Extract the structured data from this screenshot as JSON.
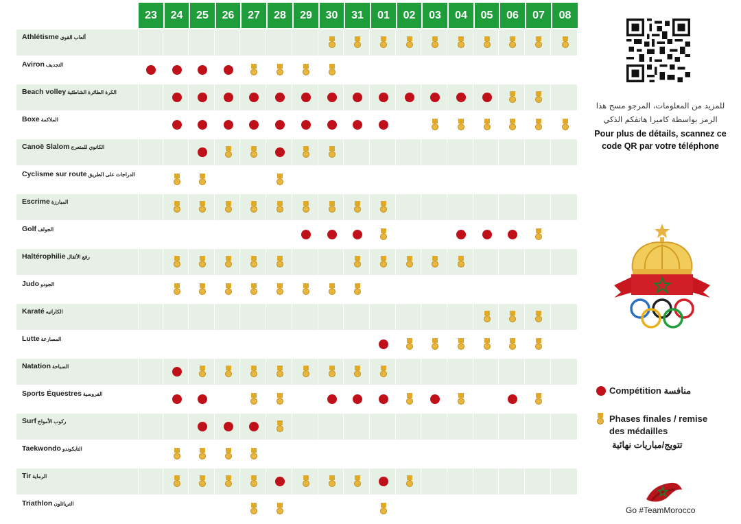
{
  "dates": [
    "23",
    "24",
    "25",
    "26",
    "27",
    "28",
    "29",
    "30",
    "31",
    "01",
    "02",
    "03",
    "04",
    "05",
    "06",
    "07",
    "08"
  ],
  "sports": [
    {
      "fr": "Athlétisme",
      "ar": "ألعاب القوى",
      "events": [
        [
          7,
          "M"
        ],
        [
          8,
          "M"
        ],
        [
          9,
          "M"
        ],
        [
          10,
          "M"
        ],
        [
          11,
          "M"
        ],
        [
          12,
          "M"
        ],
        [
          13,
          "M"
        ],
        [
          14,
          "M"
        ],
        [
          15,
          "M"
        ],
        [
          16,
          "M"
        ]
      ]
    },
    {
      "fr": "Aviron",
      "ar": "التجديف",
      "events": [
        [
          0,
          "C"
        ],
        [
          1,
          "C"
        ],
        [
          2,
          "C"
        ],
        [
          3,
          "C"
        ],
        [
          4,
          "M"
        ],
        [
          5,
          "M"
        ],
        [
          6,
          "M"
        ],
        [
          7,
          "M"
        ]
      ]
    },
    {
      "fr": "Beach volley",
      "ar": "الكرة الطائرة الشاطئية",
      "events": [
        [
          1,
          "C"
        ],
        [
          2,
          "C"
        ],
        [
          3,
          "C"
        ],
        [
          4,
          "C"
        ],
        [
          5,
          "C"
        ],
        [
          6,
          "C"
        ],
        [
          7,
          "C"
        ],
        [
          8,
          "C"
        ],
        [
          9,
          "C"
        ],
        [
          10,
          "C"
        ],
        [
          11,
          "C"
        ],
        [
          12,
          "C"
        ],
        [
          13,
          "C"
        ],
        [
          14,
          "M"
        ],
        [
          15,
          "M"
        ]
      ]
    },
    {
      "fr": "Boxe",
      "ar": "الملاكمة",
      "events": [
        [
          1,
          "C"
        ],
        [
          2,
          "C"
        ],
        [
          3,
          "C"
        ],
        [
          4,
          "C"
        ],
        [
          5,
          "C"
        ],
        [
          6,
          "C"
        ],
        [
          7,
          "C"
        ],
        [
          8,
          "C"
        ],
        [
          9,
          "C"
        ],
        [
          11,
          "M"
        ],
        [
          12,
          "M"
        ],
        [
          13,
          "M"
        ],
        [
          14,
          "M"
        ],
        [
          15,
          "M"
        ],
        [
          16,
          "M"
        ]
      ]
    },
    {
      "fr": "Canoë Slalom",
      "ar": "الكانوي للمتعرج",
      "events": [
        [
          2,
          "C"
        ],
        [
          3,
          "M"
        ],
        [
          4,
          "M"
        ],
        [
          5,
          "C"
        ],
        [
          6,
          "M"
        ],
        [
          7,
          "M"
        ]
      ]
    },
    {
      "fr": "Cyclisme sur route",
      "ar": "الدراجات على الطريق",
      "events": [
        [
          1,
          "M"
        ],
        [
          2,
          "M"
        ],
        [
          5,
          "M"
        ]
      ]
    },
    {
      "fr": "Escrime",
      "ar": "المبارزة",
      "events": [
        [
          1,
          "M"
        ],
        [
          2,
          "M"
        ],
        [
          3,
          "M"
        ],
        [
          4,
          "M"
        ],
        [
          5,
          "M"
        ],
        [
          6,
          "M"
        ],
        [
          7,
          "M"
        ],
        [
          8,
          "M"
        ],
        [
          9,
          "M"
        ]
      ]
    },
    {
      "fr": "Golf",
      "ar": "الجولف",
      "events": [
        [
          6,
          "C"
        ],
        [
          7,
          "C"
        ],
        [
          8,
          "C"
        ],
        [
          9,
          "M"
        ],
        [
          12,
          "C"
        ],
        [
          13,
          "C"
        ],
        [
          14,
          "C"
        ],
        [
          15,
          "M"
        ]
      ]
    },
    {
      "fr": "Haltérophilie",
      "ar": "رفع الأثقال",
      "events": [
        [
          1,
          "M"
        ],
        [
          2,
          "M"
        ],
        [
          3,
          "M"
        ],
        [
          4,
          "M"
        ],
        [
          5,
          "M"
        ],
        [
          8,
          "M"
        ],
        [
          9,
          "M"
        ],
        [
          10,
          "M"
        ],
        [
          11,
          "M"
        ],
        [
          12,
          "M"
        ]
      ]
    },
    {
      "fr": "Judo",
      "ar": "الجودو",
      "events": [
        [
          1,
          "M"
        ],
        [
          2,
          "M"
        ],
        [
          3,
          "M"
        ],
        [
          4,
          "M"
        ],
        [
          5,
          "M"
        ],
        [
          6,
          "M"
        ],
        [
          7,
          "M"
        ],
        [
          8,
          "M"
        ]
      ]
    },
    {
      "fr": "Karaté",
      "ar": "الكاراتيه",
      "events": [
        [
          13,
          "M"
        ],
        [
          14,
          "M"
        ],
        [
          15,
          "M"
        ]
      ]
    },
    {
      "fr": "Lutte",
      "ar": "المصارعة",
      "events": [
        [
          9,
          "C"
        ],
        [
          10,
          "M"
        ],
        [
          11,
          "M"
        ],
        [
          12,
          "M"
        ],
        [
          13,
          "M"
        ],
        [
          14,
          "M"
        ],
        [
          15,
          "M"
        ]
      ]
    },
    {
      "fr": "Natation",
      "ar": "السباحة",
      "events": [
        [
          1,
          "C"
        ],
        [
          2,
          "M"
        ],
        [
          3,
          "M"
        ],
        [
          4,
          "M"
        ],
        [
          5,
          "M"
        ],
        [
          6,
          "M"
        ],
        [
          7,
          "M"
        ],
        [
          8,
          "M"
        ],
        [
          9,
          "M"
        ]
      ]
    },
    {
      "fr": "Sports Équestres",
      "ar": "الفروسية",
      "events": [
        [
          1,
          "C"
        ],
        [
          2,
          "C"
        ],
        [
          4,
          "M"
        ],
        [
          5,
          "M"
        ],
        [
          7,
          "C"
        ],
        [
          8,
          "C"
        ],
        [
          9,
          "C"
        ],
        [
          10,
          "M"
        ],
        [
          11,
          "C"
        ],
        [
          12,
          "M"
        ],
        [
          14,
          "C"
        ],
        [
          15,
          "M"
        ]
      ]
    },
    {
      "fr": "Surf",
      "ar": "ركوب الأمواج",
      "events": [
        [
          2,
          "C"
        ],
        [
          3,
          "C"
        ],
        [
          4,
          "C"
        ],
        [
          5,
          "M"
        ]
      ]
    },
    {
      "fr": "Taekwondo",
      "ar": "التايكوندو",
      "events": [
        [
          1,
          "M"
        ],
        [
          2,
          "M"
        ],
        [
          3,
          "M"
        ],
        [
          4,
          "M"
        ]
      ]
    },
    {
      "fr": "Tir",
      "ar": "الرماية",
      "events": [
        [
          1,
          "M"
        ],
        [
          2,
          "M"
        ],
        [
          3,
          "M"
        ],
        [
          4,
          "M"
        ],
        [
          5,
          "C"
        ],
        [
          6,
          "M"
        ],
        [
          7,
          "M"
        ],
        [
          8,
          "M"
        ],
        [
          9,
          "C"
        ],
        [
          10,
          "M"
        ]
      ]
    },
    {
      "fr": "Triathlon",
      "ar": "الترياثلون",
      "events": [
        [
          4,
          "M"
        ],
        [
          5,
          "M"
        ],
        [
          9,
          "M"
        ]
      ]
    }
  ],
  "side": {
    "qr_ar_line1": "للمزيد من المعلومات، المرجو مسح هذا",
    "qr_ar_line2": "الرمز بواسطة كاميرا هاتفكم الذكي",
    "qr_fr_line1": "Pour plus de détails, scannez ce",
    "qr_fr_line2": "code QR par votre téléphone",
    "legend_competition_fr": "Compétition",
    "legend_competition_ar": "منافسة",
    "legend_finals_line1": "Phases finales / remise",
    "legend_finals_line2": "des médailles",
    "legend_finals_ar": "تتويج/مباريات نهائية",
    "team_tag": "Go #TeamMorocco"
  },
  "colors": {
    "header_green": "#1f9d3a",
    "competition_red": "#c0101a",
    "medal_gold": "#e7b640",
    "row_shade": "#e6f0e4"
  }
}
